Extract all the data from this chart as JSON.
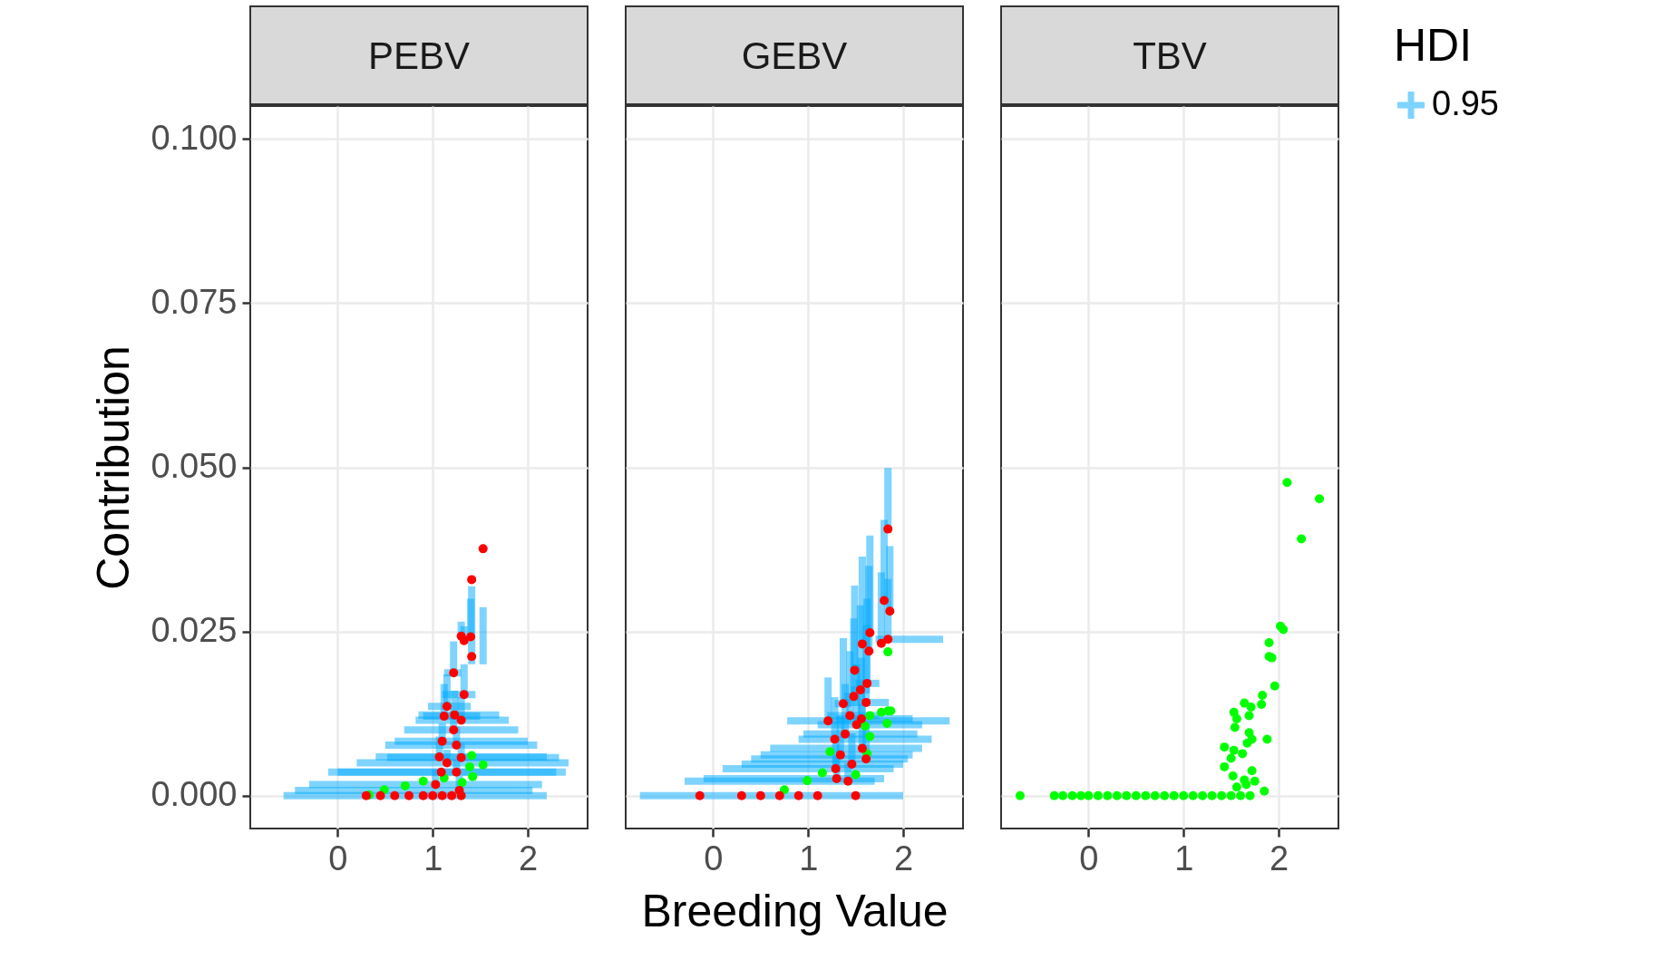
{
  "chart_data": [
    {
      "type": "scatter",
      "title": "PEBV",
      "ylabel": "Contribution",
      "legend_title": "HDI",
      "legend": "right",
      "grid": true,
      "marker": "circle",
      "xlim": [
        -0.92,
        2.63
      ],
      "xticks": [
        0,
        1,
        2
      ],
      "ylim": [
        -0.005,
        0.105
      ],
      "yticks": [
        {
          "value": 0,
          "label": "0.000"
        },
        {
          "value": 0.025,
          "label": "0.025"
        },
        {
          "value": 0.05,
          "label": "0.050"
        },
        {
          "value": 0.075,
          "label": "0.075"
        },
        {
          "value": 0.1,
          "label": "0.100"
        }
      ],
      "series": [
        {
          "color": "#00ff00",
          "x": [
            1.41,
            1.53,
            1.39,
            1.42,
            1.31,
            1.12,
            0.9,
            0.71,
            0.49,
            0.33
          ],
          "values": [
            0.0061,
            0.0047,
            0.0044,
            0.0029,
            0.002,
            0.0027,
            0.0022,
            0.0015,
            0.0009,
            0.0001
          ]
        },
        {
          "name": "0.95",
          "color": "#00a9ff",
          "colors": [
            "#ff0000",
            "#ff0000",
            "#ff0000",
            "#ff0000",
            "#ff0000",
            "#ff0000",
            "#ff0000",
            "#ff0000",
            "#ff0000",
            "#ff0000",
            "#ff0000",
            "#ff0000",
            "#ff0000",
            "#ff0000",
            "#ff0000",
            "#ff0000",
            "#ff0000",
            "#ff0000",
            "#ff0000",
            "#ff0000",
            "#ff0000",
            "#ff0000",
            "#ff0000",
            "#ff0000",
            "#ff0000",
            "#ff0000",
            "#ff0000",
            "#ff0000",
            "#ff0000",
            "#ff0000",
            "#ff0000"
          ],
          "x": [
            1.53,
            1.41,
            1.3,
            1.4,
            1.33,
            1.41,
            1.22,
            1.33,
            1.15,
            1.12,
            1.23,
            1.3,
            1.22,
            1.1,
            1.25,
            1.07,
            1.3,
            1.15,
            1.09,
            1.25,
            1.03,
            1.28,
            0.3,
            0.45,
            0.6,
            0.75,
            0.9,
            1.0,
            1.1,
            1.2,
            1.3
          ],
          "values": [
            0.0376,
            0.0329,
            0.0243,
            0.0242,
            0.0236,
            0.0212,
            0.0187,
            0.0154,
            0.0136,
            0.0121,
            0.0123,
            0.0115,
            0.01,
            0.0083,
            0.0077,
            0.0059,
            0.0058,
            0.005,
            0.0036,
            0.0036,
            0.0017,
            0.0008,
            0,
            0,
            0,
            0,
            0,
            0,
            0,
            0,
            0
          ],
          "errors": [
            [
              0.02,
              0.0287
            ],
            [
              0.02,
              0.0319
            ],
            [
              0.0243,
              0.0265
            ],
            [
              0.0242,
              0.03
            ],
            [
              0.0236,
              0.0258
            ],
            null,
            [
              0.0187,
              0.0235
            ],
            [
              0.0154,
              0.02
            ],
            [
              0.0136,
              0.0185
            ],
            [
              0.0121,
              0.017
            ],
            [
              0.0123,
              0.016
            ],
            [
              0.0115,
              0.015
            ],
            [
              0.01,
              0.013
            ],
            [
              0.0083,
              0.011
            ],
            [
              0.0077,
              0.0105
            ],
            [
              0.0059,
              0.009
            ],
            [
              0.0058,
              0.008
            ],
            [
              0.005,
              0.007
            ],
            null,
            [
              0.0036,
              0.0055
            ],
            [
              0.0017,
              0.004
            ],
            [
              0.0008,
              0.003
            ],
            null,
            null,
            null,
            null,
            null,
            null,
            null,
            null,
            null
          ],
          "xerrors": [
            null,
            null,
            null,
            null,
            null,
            null,
            [
              1.12,
              1.3
            ],
            [
              1.1,
              1.45
            ],
            [
              0.95,
              1.4
            ],
            [
              0.9,
              1.5
            ],
            [
              0.85,
              1.7
            ],
            [
              0.82,
              1.8
            ],
            [
              0.7,
              1.9
            ],
            [
              0.6,
              2.0
            ],
            [
              0.5,
              2.1
            ],
            [
              0.4,
              2.2
            ],
            [
              0.52,
              2.33
            ],
            [
              0.2,
              2.43
            ],
            [
              0.0,
              2.4
            ],
            [
              -0.1,
              2.3
            ],
            [
              -0.3,
              2.15
            ],
            [
              -0.45,
              2.05
            ],
            [
              -0.57,
              2.2
            ],
            null,
            null,
            null,
            null,
            null,
            null,
            null,
            null
          ]
        }
      ]
    },
    {
      "type": "scatter",
      "title": "GEBV",
      "xlabel": "Breeding Value",
      "grid": true,
      "marker": "circle",
      "tick_labels": "x",
      "xlim": [
        -0.92,
        2.63
      ],
      "xticks": [
        0,
        1,
        2
      ],
      "ylim": [
        -0.005,
        0.105
      ],
      "yticks": [
        0,
        0.025,
        0.05,
        0.075,
        0.1
      ],
      "series": [
        {
          "color": "#00ff00",
          "x": [
            1.84,
            1.84,
            1.77,
            1.87,
            1.83,
            1.65,
            1.6,
            1.65,
            1.62,
            1.23,
            1.5,
            1.15,
            0.99,
            0.75
          ],
          "values": [
            0.0219,
            0.0129,
            0.0127,
            0.0129,
            0.011,
            0.0122,
            0.0106,
            0.009,
            0.0064,
            0.0067,
            0.0032,
            0.0035,
            0.0023,
            0.0009
          ]
        },
        {
          "color": "#00a9ff",
          "colors": [
            "#ff0000",
            "#ff0000",
            "#ff0000",
            "#ff0000",
            "#ff0000",
            "#ff0000",
            "#ff0000",
            "#ff0000",
            "#ff0000",
            "#ff0000",
            "#ff0000",
            "#ff0000",
            "#ff0000",
            "#ff0000",
            "#ff0000",
            "#ff0000",
            "#ff0000",
            "#ff0000",
            "#ff0000",
            "#ff0000",
            "#ff0000",
            "#ff0000",
            "#ff0000",
            "#ff0000",
            "#ff0000",
            "#ff0000",
            "#ff0000",
            "#ff0000",
            "#ff0000",
            "#ff0000",
            "#ff0000",
            "#ff0000",
            "#ff0000",
            "#ff0000"
          ],
          "x": [
            1.84,
            1.8,
            1.86,
            1.65,
            1.84,
            1.77,
            1.57,
            1.64,
            1.49,
            1.62,
            1.55,
            1.48,
            1.61,
            1.37,
            1.44,
            1.56,
            1.21,
            1.51,
            1.39,
            1.28,
            1.57,
            1.34,
            1.61,
            1.46,
            1.29,
            1.3,
            1.42,
            -0.14,
            0.3,
            0.5,
            0.7,
            0.9,
            1.1,
            1.5
          ],
          "values": [
            0.0406,
            0.0297,
            0.0281,
            0.0248,
            0.0238,
            0.0232,
            0.0231,
            0.022,
            0.0191,
            0.0171,
            0.0161,
            0.0151,
            0.0142,
            0.014,
            0.0122,
            0.0117,
            0.0114,
            0.0108,
            0.0094,
            0.0086,
            0.0072,
            0.0062,
            0.0056,
            0.0048,
            0.0041,
            0.0026,
            0.0022,
            0,
            0,
            0,
            0,
            0,
            0,
            0
          ],
          "errors": [
            [
              0.0406,
              0.0499
            ],
            [
              0.0297,
              0.042
            ],
            [
              0.0281,
              0.038
            ],
            [
              0.0248,
              0.0396
            ],
            [
              0.0238,
              0.033
            ],
            [
              0.0232,
              0.034
            ],
            [
              0.0231,
              0.0364
            ],
            [
              0.022,
              0.035
            ],
            [
              0.0191,
              0.032
            ],
            [
              0.0171,
              0.03
            ],
            [
              0.0161,
              0.029
            ],
            [
              0.0151,
              0.027
            ],
            [
              0.0142,
              0.026
            ],
            [
              0.014,
              0.024
            ],
            [
              0.0122,
              0.022
            ],
            [
              0.0117,
              0.021
            ],
            [
              0.0114,
              0.018
            ],
            [
              0.0108,
              0.02
            ],
            [
              0.0094,
              0.017
            ],
            [
              0.0086,
              0.015
            ],
            [
              0.0072,
              0.014
            ],
            [
              0.0062,
              0.012
            ],
            [
              0.0056,
              0.011
            ],
            [
              0.0048,
              0.0095
            ],
            [
              0.0041,
              0.008
            ],
            [
              0.0026,
              0.006
            ],
            [
              0.0022,
              0.005
            ],
            null,
            null,
            null,
            null,
            null,
            null,
            null
          ],
          "xerrors": [
            null,
            null,
            null,
            null,
            [
              1.71,
              2.42
            ],
            null,
            null,
            null,
            null,
            [
              1.5,
              1.75
            ],
            [
              1.45,
              1.65
            ],
            [
              1.38,
              1.6
            ],
            [
              1.4,
              1.85
            ],
            [
              1.28,
              1.45
            ],
            [
              1.2,
              1.75
            ],
            [
              1.3,
              2.1
            ],
            [
              0.78,
              2.49
            ],
            [
              1.1,
              2.2
            ],
            [
              0.95,
              2.15
            ],
            [
              0.9,
              2.3
            ],
            [
              0.6,
              2.2
            ],
            [
              0.5,
              2.1
            ],
            [
              0.4,
              2.05
            ],
            [
              0.3,
              2.0
            ],
            [
              0.1,
              1.9
            ],
            [
              -0.1,
              1.8
            ],
            [
              -0.3,
              1.7
            ],
            [
              -0.77,
              2.0
            ],
            null,
            null,
            null,
            null,
            null,
            null
          ]
        }
      ]
    },
    {
      "type": "scatter",
      "title": "TBV",
      "grid": true,
      "marker": "circle",
      "tick_labels": "x",
      "xlim": [
        -0.92,
        2.63
      ],
      "xticks": [
        0,
        1,
        2
      ],
      "ylim": [
        -0.005,
        0.105
      ],
      "yticks": [
        0,
        0.025,
        0.05,
        0.075,
        0.1
      ],
      "series": [
        {
          "color": "#00ff00",
          "x": [
            2.09,
            2.43,
            2.24,
            2.02,
            2.05,
            1.9,
            1.9,
            1.93,
            1.96,
            1.83,
            1.82,
            1.64,
            1.71,
            1.53,
            1.69,
            1.56,
            1.54,
            1.69,
            1.72,
            1.67,
            1.88,
            1.43,
            1.53,
            1.62,
            1.5,
            1.43,
            1.52,
            1.72,
            1.64,
            1.75,
            1.66,
            1.56,
            1.85,
            -0.72,
            -0.36,
            -0.27,
            -0.17,
            -0.08,
            0.0,
            0.1,
            0.2,
            0.3,
            0.4,
            0.5,
            0.6,
            0.7,
            0.8,
            0.9,
            1.0,
            1.1,
            1.2,
            1.3,
            1.4,
            1.5,
            1.6,
            1.7
          ],
          "values": [
            0.0477,
            0.0452,
            0.0391,
            0.0258,
            0.0253,
            0.0233,
            0.0212,
            0.021,
            0.0167,
            0.0153,
            0.0139,
            0.0141,
            0.0135,
            0.0127,
            0.0122,
            0.0117,
            0.0104,
            0.0096,
            0.0086,
            0.008,
            0.0086,
            0.0074,
            0.0069,
            0.0064,
            0.0057,
            0.0044,
            0.003,
            0.0038,
            0.0024,
            0.0022,
            0.0017,
            0.0013,
            0.0007,
            0,
            0,
            0,
            0,
            0,
            0,
            0,
            0,
            0,
            0,
            0,
            0,
            0,
            0,
            0,
            0,
            0,
            0,
            0,
            0,
            0,
            0,
            0
          ]
        }
      ]
    }
  ]
}
